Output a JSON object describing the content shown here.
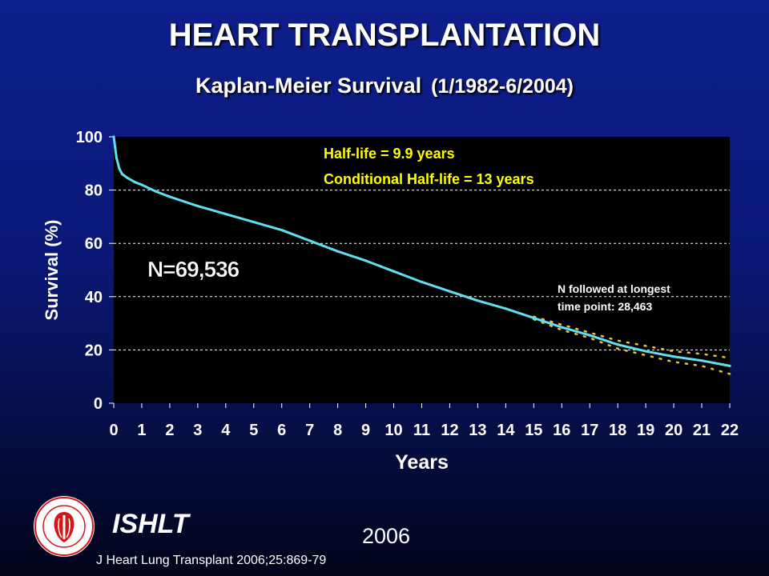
{
  "slide": {
    "title": "HEART TRANSPLANTATION",
    "subtitle": "Kaplan-Meier Survival",
    "subtitle_range": "(1/1982-6/2004)",
    "organization": "ISHLT",
    "year": "2006",
    "citation": "J Heart Lung Transplant 2006;25:869-79"
  },
  "colors": {
    "survival_line": "#5ee0f0",
    "confidence_dots": "#e8c040",
    "annotation_yellow": "#ffff00",
    "plot_background": "#000000",
    "grid": "#ffffff"
  },
  "chart_data": {
    "type": "line",
    "xlabel": "Years",
    "ylabel": "Survival (%)",
    "xlim": [
      0,
      22
    ],
    "ylim": [
      0,
      100
    ],
    "xticks": [
      "0",
      "1",
      "2",
      "3",
      "4",
      "5",
      "6",
      "7",
      "8",
      "9",
      "10",
      "11",
      "12",
      "13",
      "14",
      "15",
      "16",
      "17",
      "18",
      "19",
      "20",
      "21",
      "22"
    ],
    "yticks": [
      "0",
      "20",
      "40",
      "60",
      "80",
      "100"
    ],
    "grid": "horizontal dashed",
    "annotations": {
      "half_life": "Half-life = 9.9 years",
      "conditional_half_life": "Conditional Half-life = 13 years",
      "n_total": "N=69,536",
      "n_followed_line1": "N followed at longest",
      "n_followed_line2": "time point: 28,463"
    },
    "survival": {
      "x": [
        0,
        0.05,
        0.1,
        0.2,
        0.3,
        0.5,
        0.75,
        1,
        1.5,
        2,
        3,
        4,
        5,
        6,
        7,
        8,
        9,
        10,
        11,
        12,
        13,
        14,
        15,
        16,
        17,
        18,
        19,
        20,
        21,
        22
      ],
      "y": [
        100,
        96,
        92,
        88,
        86,
        84.5,
        83,
        82,
        79.5,
        77.5,
        74,
        71,
        68,
        65,
        61,
        57,
        53.5,
        49.5,
        45.5,
        42,
        38.5,
        35.5,
        32,
        28.5,
        25.5,
        22,
        19.5,
        17.5,
        16,
        14
      ]
    },
    "confidence_upper": {
      "x": [
        15,
        16,
        17,
        18,
        19,
        20,
        21,
        22
      ],
      "y": [
        32.5,
        29.5,
        26.5,
        23.5,
        21.5,
        19.5,
        18.5,
        17
      ]
    },
    "confidence_lower": {
      "x": [
        15,
        16,
        17,
        18,
        19,
        20,
        21,
        22
      ],
      "y": [
        31.5,
        27.5,
        24.5,
        20.5,
        18,
        15.5,
        14,
        11
      ]
    }
  }
}
